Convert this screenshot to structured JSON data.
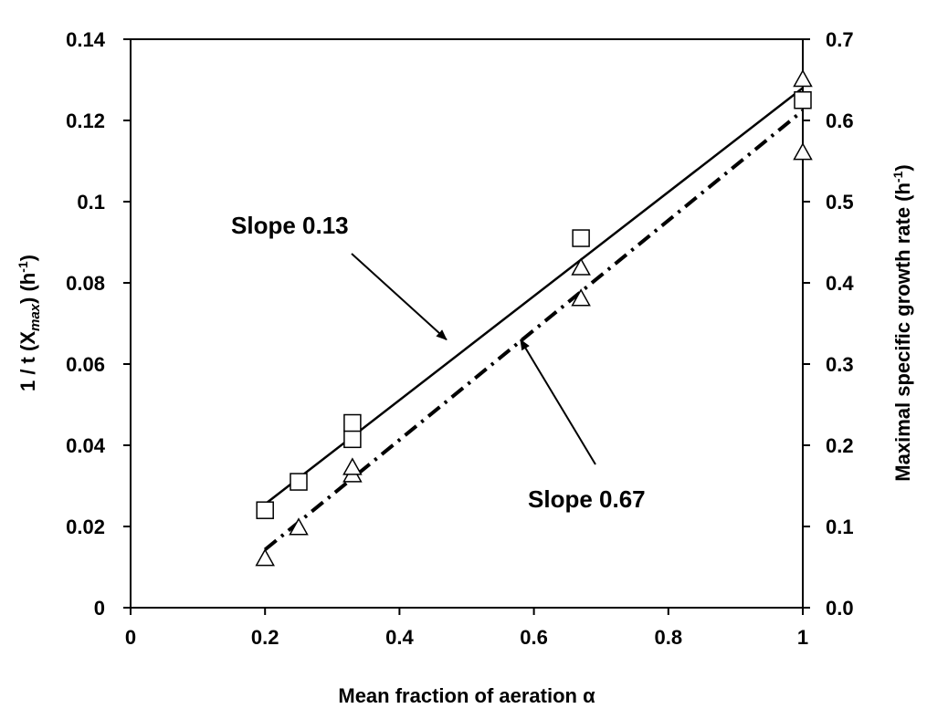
{
  "chart_data": {
    "type": "scatter",
    "title": "",
    "xlabel": "Mean fraction of aeration α",
    "ylabel_left": {
      "main": "1 / t (X",
      "sub": "max",
      "tail": ") (h",
      "sup": "-1",
      "end": ")"
    },
    "ylabel_right": {
      "main": "Maximal specific growth rate (h",
      "sup": "-1",
      "end": ")"
    },
    "xlim": [
      0,
      1
    ],
    "ylim_left": [
      0,
      0.14
    ],
    "ylim_right": [
      0,
      0.7
    ],
    "x_ticks": [
      "0",
      "0.2",
      "0.4",
      "0.6",
      "0.8",
      "1"
    ],
    "y_ticks_left": [
      "0",
      "0.02",
      "0.04",
      "0.06",
      "0.08",
      "0.1",
      "0.12",
      "0.14"
    ],
    "y_ticks_right": [
      "0.0",
      "0.1",
      "0.2",
      "0.3",
      "0.4",
      "0.5",
      "0.6",
      "0.7"
    ],
    "grid": false,
    "legend": "none",
    "series": [
      {
        "marker": "square",
        "axis": "left",
        "x": [
          0.2,
          0.25,
          0.33,
          0.33,
          0.67,
          1.0
        ],
        "y": [
          0.024,
          0.031,
          0.0415,
          0.0455,
          0.091,
          0.125
        ]
      },
      {
        "marker": "triangle",
        "axis": "right",
        "x": [
          0.2,
          0.25,
          0.33,
          0.33,
          0.67,
          0.67,
          1.0,
          1.0
        ],
        "y": [
          0.06,
          0.098,
          0.163,
          0.172,
          0.38,
          0.418,
          0.56,
          0.65
        ]
      }
    ],
    "fit_lines": [
      {
        "style": "solid",
        "axis": "left",
        "x": [
          0.2,
          1.0
        ],
        "y": [
          0.0255,
          0.128
        ]
      },
      {
        "style": "dash-dot",
        "axis": "right",
        "x": [
          0.2,
          1.0
        ],
        "y": [
          0.0715,
          0.612
        ]
      }
    ],
    "annotations": [
      {
        "text": "Slope 0.13",
        "arrow_to": [
          0.47,
          0.066
        ]
      },
      {
        "text": "Slope 0.67",
        "arrow_to": [
          0.58,
          0.066
        ]
      }
    ]
  }
}
